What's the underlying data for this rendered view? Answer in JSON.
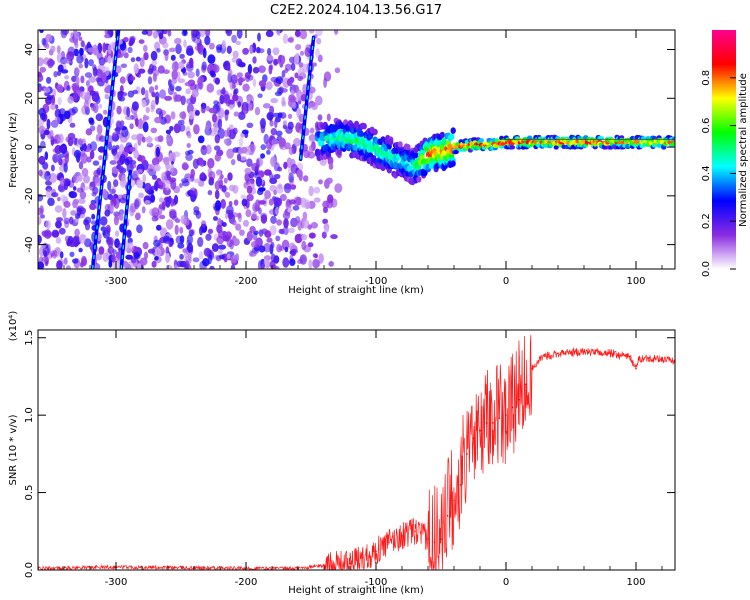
{
  "title": "C2E2.2024.104.13.56.G17",
  "chart_data": [
    {
      "type": "heatmap",
      "xlabel": "Height of straight line (km)",
      "ylabel": "Frequency (Hz)",
      "xlim": [
        -360,
        130
      ],
      "ylim": [
        -50,
        48
      ],
      "x_ticks": [
        -300,
        -200,
        -100,
        0,
        100
      ],
      "y_ticks": [
        -40,
        -20,
        0,
        20,
        40
      ],
      "colorbar": {
        "label": "Normalized spectral amplitude",
        "range": [
          0,
          1
        ],
        "ticks": [
          "0.0",
          "0.2",
          "0.4",
          "0.6",
          "0.8"
        ],
        "tick_values": [
          0,
          0.2,
          0.4,
          0.6,
          0.8
        ],
        "colors": [
          "#ffffff",
          "#8a2be2",
          "#0000ff",
          "#00ffff",
          "#00ff00",
          "#ffff00",
          "#ff0000",
          "#ff0090"
        ]
      },
      "features": {
        "noise_region_x": [
          -360,
          -125
        ],
        "streaks": [
          {
            "x0": -318,
            "f0": -50,
            "x1": -298,
            "f1": 48
          },
          {
            "x0": -296,
            "f0": -50,
            "x1": -289,
            "f1": -10
          },
          {
            "x0": -158,
            "f0": -5,
            "x1": -148,
            "f1": 45
          }
        ],
        "signal_band": [
          {
            "x": -145,
            "f": 2,
            "amp": 0.45
          },
          {
            "x": -130,
            "f": 4,
            "amp": 0.5
          },
          {
            "x": -110,
            "f": 2,
            "amp": 0.55
          },
          {
            "x": -95,
            "f": -2,
            "amp": 0.5
          },
          {
            "x": -80,
            "f": -6,
            "amp": 0.45
          },
          {
            "x": -70,
            "f": -8,
            "amp": 0.5
          },
          {
            "x": -60,
            "f": -3,
            "amp": 0.85
          },
          {
            "x": -50,
            "f": -2,
            "amp": 0.8
          },
          {
            "x": -40,
            "f": 0,
            "amp": 0.9
          },
          {
            "x": -25,
            "f": 1,
            "amp": 0.9
          },
          {
            "x": -10,
            "f": 1,
            "amp": 0.85
          },
          {
            "x": 0,
            "f": 2,
            "amp": 0.9
          },
          {
            "x": 30,
            "f": 2,
            "amp": 0.85
          },
          {
            "x": 60,
            "f": 2,
            "amp": 0.9
          },
          {
            "x": 90,
            "f": 2,
            "amp": 0.8
          },
          {
            "x": 130,
            "f": 2,
            "amp": 0.8
          }
        ]
      }
    },
    {
      "type": "line",
      "xlabel": "Height of straight line (km)",
      "ylabel": "SNR (10 * v/v)",
      "y_scale_label": "(x10⁴)",
      "xlim": [
        -360,
        130
      ],
      "ylim": [
        0,
        1.55
      ],
      "x_ticks": [
        -300,
        -200,
        -100,
        0,
        100
      ],
      "y_ticks": [
        "0.0",
        "0.5",
        "1.0",
        "1.5"
      ],
      "y_tick_values": [
        0,
        0.5,
        1.0,
        1.5
      ],
      "series": [
        {
          "color": "#ff0000",
          "x": [
            -360,
            -300,
            -200,
            -160,
            -140,
            -120,
            -110,
            -100,
            -90,
            -80,
            -70,
            -60,
            -55,
            -50,
            -45,
            -40,
            -35,
            -30,
            -25,
            -20,
            -15,
            -10,
            -5,
            0,
            5,
            10,
            15,
            20,
            25,
            30,
            40,
            60,
            80,
            95,
            100,
            102,
            110,
            130
          ],
          "y": [
            0.01,
            0.02,
            0.01,
            0.01,
            0.03,
            0.04,
            0.08,
            0.12,
            0.18,
            0.22,
            0.25,
            0.2,
            0.18,
            0.2,
            0.35,
            0.45,
            0.55,
            0.75,
            0.85,
            0.9,
            0.95,
            0.95,
            0.98,
            1.0,
            1.05,
            1.1,
            1.2,
            1.3,
            1.35,
            1.38,
            1.4,
            1.41,
            1.4,
            1.38,
            1.3,
            1.36,
            1.37,
            1.35
          ]
        }
      ]
    }
  ]
}
